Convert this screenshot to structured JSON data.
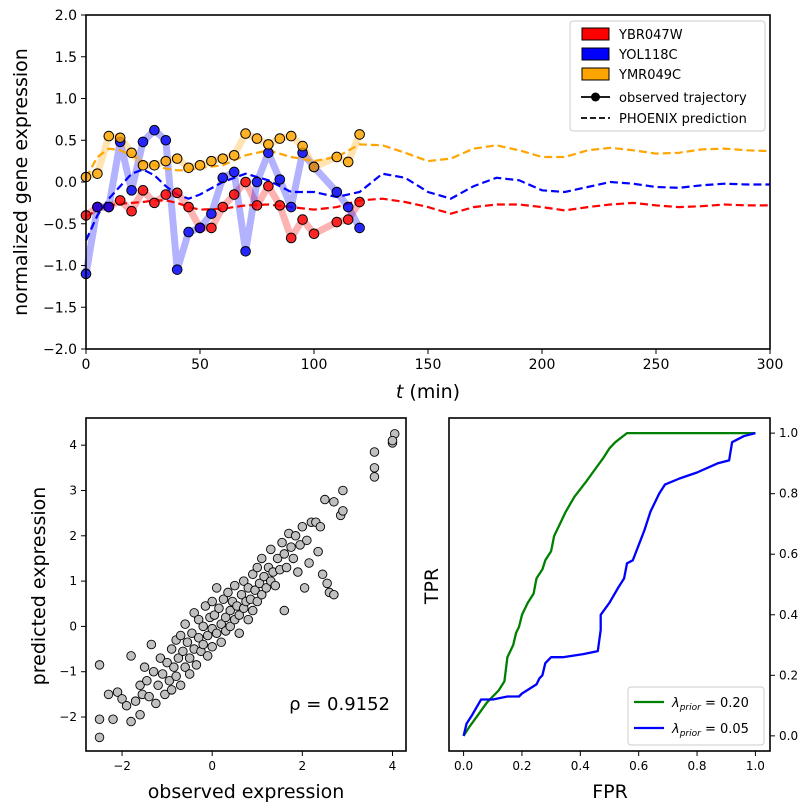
{
  "chart_data": [
    {
      "type": "line",
      "xlabel_italic": "t",
      "xlabel_unit": " (min)",
      "ylabel": "normalized gene expression",
      "xlim": [
        0,
        300
      ],
      "ylim": [
        -2.0,
        2.0
      ],
      "xticks": [
        0,
        50,
        100,
        150,
        200,
        250,
        300
      ],
      "yticks": [
        "2.0",
        "1.5",
        "1.0",
        "0.5",
        "0.0",
        "-0.5",
        "-1.0",
        "-1.5",
        "-2.0"
      ],
      "legend_position": "top-right",
      "legend": [
        {
          "label": "YBR047W",
          "kind": "patch",
          "color": "#ff0000"
        },
        {
          "label": "YOL118C",
          "kind": "patch",
          "color": "#0000ff"
        },
        {
          "label": "YMR049C",
          "kind": "patch",
          "color": "#ffa500"
        },
        {
          "label": "observed trajectory",
          "kind": "marker-line",
          "color": "#000000"
        },
        {
          "label": "PHOENIX prediction",
          "kind": "dashed-line",
          "color": "#000000"
        }
      ],
      "series": [
        {
          "name": "YBR047W",
          "color": "#ff0000",
          "observed_t": [
            0,
            5,
            10,
            15,
            20,
            25,
            30,
            35,
            40,
            45,
            50,
            55,
            60,
            65,
            70,
            75,
            80,
            85,
            90,
            95,
            100,
            110,
            115,
            120
          ],
          "observed": [
            -0.4,
            -0.3,
            -0.3,
            -0.22,
            -0.35,
            -0.1,
            -0.25,
            -0.15,
            -0.13,
            -0.3,
            -0.55,
            -0.55,
            -0.3,
            -0.15,
            0.0,
            -0.28,
            -0.05,
            -0.28,
            -0.67,
            -0.45,
            -0.62,
            -0.48,
            -0.45,
            -0.24
          ],
          "prediction_t": [
            0,
            5,
            10,
            15,
            20,
            25,
            30,
            35,
            40,
            45,
            50,
            60,
            70,
            80,
            90,
            100,
            110,
            120,
            130,
            140,
            150,
            160,
            170,
            180,
            190,
            200,
            210,
            220,
            230,
            240,
            250,
            260,
            270,
            280,
            290,
            300
          ],
          "prediction": [
            -0.42,
            -0.33,
            -0.28,
            -0.26,
            -0.25,
            -0.24,
            -0.22,
            -0.22,
            -0.25,
            -0.3,
            -0.33,
            -0.32,
            -0.28,
            -0.27,
            -0.3,
            -0.33,
            -0.3,
            -0.22,
            -0.2,
            -0.24,
            -0.3,
            -0.38,
            -0.3,
            -0.27,
            -0.27,
            -0.3,
            -0.34,
            -0.3,
            -0.27,
            -0.25,
            -0.28,
            -0.3,
            -0.29,
            -0.27,
            -0.28,
            -0.28
          ]
        },
        {
          "name": "YOL118C",
          "color": "#0000ff",
          "observed_t": [
            0,
            5,
            10,
            15,
            20,
            25,
            30,
            35,
            40,
            45,
            50,
            55,
            60,
            65,
            70,
            75,
            80,
            85,
            90,
            95,
            100,
            110,
            115,
            120
          ],
          "observed": [
            -1.1,
            -0.3,
            -0.3,
            0.48,
            -0.1,
            0.48,
            0.62,
            0.5,
            -1.05,
            -0.6,
            -0.55,
            -0.38,
            0.05,
            0.12,
            -0.83,
            0.0,
            0.35,
            0.03,
            -0.3,
            0.35,
            0.18,
            -0.12,
            -0.3,
            -0.55
          ],
          "prediction_t": [
            0,
            5,
            10,
            15,
            20,
            25,
            30,
            35,
            40,
            45,
            50,
            60,
            70,
            80,
            90,
            100,
            110,
            120,
            130,
            140,
            150,
            160,
            170,
            180,
            190,
            200,
            210,
            220,
            230,
            240,
            250,
            260,
            270,
            280,
            290,
            300
          ],
          "prediction": [
            -0.7,
            -0.4,
            -0.2,
            -0.05,
            0.1,
            0.15,
            0.08,
            -0.05,
            -0.15,
            -0.2,
            -0.15,
            0.0,
            0.1,
            0.02,
            -0.12,
            -0.12,
            -0.18,
            -0.12,
            0.1,
            0.05,
            -0.12,
            -0.2,
            -0.05,
            0.05,
            0.02,
            -0.1,
            -0.12,
            -0.06,
            0.0,
            -0.02,
            -0.06,
            -0.07,
            -0.04,
            -0.02,
            -0.03,
            -0.03
          ]
        },
        {
          "name": "YMR049C",
          "color": "#ffa500",
          "observed_t": [
            0,
            5,
            10,
            15,
            20,
            25,
            30,
            35,
            40,
            45,
            50,
            55,
            60,
            65,
            70,
            75,
            80,
            85,
            90,
            95,
            100,
            110,
            115,
            120
          ],
          "observed": [
            0.06,
            0.1,
            0.55,
            0.53,
            0.35,
            0.2,
            0.2,
            0.25,
            0.28,
            0.17,
            0.2,
            0.25,
            0.28,
            0.32,
            0.58,
            0.52,
            0.45,
            0.52,
            0.55,
            0.43,
            0.18,
            0.3,
            0.24,
            0.57
          ],
          "prediction_t": [
            0,
            5,
            10,
            15,
            20,
            25,
            30,
            35,
            40,
            45,
            50,
            60,
            70,
            80,
            90,
            100,
            110,
            120,
            130,
            140,
            150,
            160,
            170,
            180,
            190,
            200,
            210,
            220,
            230,
            240,
            250,
            260,
            270,
            280,
            290,
            300
          ],
          "prediction": [
            0.05,
            0.3,
            0.4,
            0.38,
            0.32,
            0.24,
            0.2,
            0.16,
            0.14,
            0.14,
            0.17,
            0.2,
            0.32,
            0.38,
            0.3,
            0.25,
            0.3,
            0.45,
            0.44,
            0.35,
            0.25,
            0.28,
            0.4,
            0.44,
            0.38,
            0.3,
            0.3,
            0.38,
            0.41,
            0.38,
            0.34,
            0.35,
            0.39,
            0.4,
            0.38,
            0.37
          ]
        }
      ]
    },
    {
      "type": "scatter",
      "xlabel": "observed expression",
      "ylabel": "predicted expression",
      "xlim": [
        -2.8,
        4.3
      ],
      "ylim": [
        -2.75,
        4.6
      ],
      "xticks": [
        -2,
        0,
        2,
        4
      ],
      "yticks": [
        -2,
        -1,
        0,
        1,
        2,
        3,
        4
      ],
      "annotation": "ρ = 0.9152",
      "point_color": "#c0c0c0",
      "points": [
        [
          -2.5,
          -2.45
        ],
        [
          -2.5,
          -2.05
        ],
        [
          -2.5,
          -0.85
        ],
        [
          -2.3,
          -1.5
        ],
        [
          -2.2,
          -2.05
        ],
        [
          -2.1,
          -1.45
        ],
        [
          -2.0,
          -1.6
        ],
        [
          -1.9,
          -1.75
        ],
        [
          -1.8,
          -2.1
        ],
        [
          -1.8,
          -0.65
        ],
        [
          -1.7,
          -1.65
        ],
        [
          -1.6,
          -1.3
        ],
        [
          -1.6,
          -1.95
        ],
        [
          -1.55,
          -1.5
        ],
        [
          -1.5,
          -0.9
        ],
        [
          -1.45,
          -1.2
        ],
        [
          -1.4,
          -1.55
        ],
        [
          -1.35,
          -0.4
        ],
        [
          -1.3,
          -1.0
        ],
        [
          -1.25,
          -1.7
        ],
        [
          -1.2,
          -1.3
        ],
        [
          -1.15,
          -0.7
        ],
        [
          -1.1,
          -1.05
        ],
        [
          -1.05,
          -1.5
        ],
        [
          -1.0,
          -0.8
        ],
        [
          -0.95,
          -1.2
        ],
        [
          -0.9,
          -0.5
        ],
        [
          -0.9,
          -1.4
        ],
        [
          -0.85,
          -0.9
        ],
        [
          -0.8,
          -0.3
        ],
        [
          -0.8,
          -1.1
        ],
        [
          -0.75,
          -0.7
        ],
        [
          -0.7,
          -1.3
        ],
        [
          -0.7,
          -0.2
        ],
        [
          -0.65,
          -0.55
        ],
        [
          -0.6,
          -0.9
        ],
        [
          -0.6,
          0.05
        ],
        [
          -0.55,
          -0.35
        ],
        [
          -0.5,
          -0.7
        ],
        [
          -0.5,
          -1.05
        ],
        [
          -0.45,
          -0.15
        ],
        [
          -0.4,
          -0.5
        ],
        [
          -0.4,
          0.3
        ],
        [
          -0.35,
          -0.85
        ],
        [
          -0.3,
          -0.25
        ],
        [
          -0.3,
          0.15
        ],
        [
          -0.25,
          -0.55
        ],
        [
          -0.2,
          0.0
        ],
        [
          -0.2,
          -0.4
        ],
        [
          -0.15,
          0.45
        ],
        [
          -0.1,
          -0.2
        ],
        [
          -0.1,
          -0.65
        ],
        [
          -0.05,
          0.2
        ],
        [
          0.0,
          -0.05
        ],
        [
          0.0,
          0.55
        ],
        [
          0.0,
          -0.45
        ],
        [
          0.05,
          0.25
        ],
        [
          0.1,
          -0.15
        ],
        [
          0.1,
          0.85
        ],
        [
          0.15,
          0.4
        ],
        [
          0.2,
          0.05
        ],
        [
          0.2,
          -0.35
        ],
        [
          0.25,
          0.6
        ],
        [
          0.3,
          0.2
        ],
        [
          0.3,
          -0.1
        ],
        [
          0.35,
          0.75
        ],
        [
          0.4,
          0.35
        ],
        [
          0.4,
          0.0
        ],
        [
          0.45,
          0.55
        ],
        [
          0.5,
          0.15
        ],
        [
          0.5,
          0.9
        ],
        [
          0.55,
          0.45
        ],
        [
          0.6,
          0.25
        ],
        [
          0.6,
          -0.15
        ],
        [
          0.65,
          0.7
        ],
        [
          0.7,
          0.4
        ],
        [
          0.7,
          1.0
        ],
        [
          0.75,
          0.55
        ],
        [
          0.8,
          0.15
        ],
        [
          0.8,
          0.85
        ],
        [
          0.85,
          0.6
        ],
        [
          0.9,
          1.15
        ],
        [
          0.9,
          0.35
        ],
        [
          0.95,
          0.8
        ],
        [
          1.0,
          0.55
        ],
        [
          1.0,
          1.3
        ],
        [
          1.05,
          0.95
        ],
        [
          1.1,
          0.7
        ],
        [
          1.1,
          1.5
        ],
        [
          1.15,
          1.1
        ],
        [
          1.2,
          0.85
        ],
        [
          1.25,
          1.3
        ],
        [
          1.3,
          1.0
        ],
        [
          1.3,
          1.7
        ],
        [
          1.35,
          1.2
        ],
        [
          1.4,
          0.9
        ],
        [
          1.45,
          1.5
        ],
        [
          1.5,
          1.25
        ],
        [
          1.55,
          1.85
        ],
        [
          1.6,
          1.6
        ],
        [
          1.6,
          0.35
        ],
        [
          1.65,
          1.3
        ],
        [
          1.7,
          2.05
        ],
        [
          1.75,
          1.75
        ],
        [
          1.8,
          1.5
        ],
        [
          1.85,
          2.0
        ],
        [
          1.9,
          1.2
        ],
        [
          1.95,
          1.8
        ],
        [
          2.0,
          2.2
        ],
        [
          2.05,
          0.85
        ],
        [
          2.1,
          1.9
        ],
        [
          2.15,
          1.4
        ],
        [
          2.2,
          2.3
        ],
        [
          2.3,
          2.3
        ],
        [
          2.35,
          1.65
        ],
        [
          2.4,
          2.2
        ],
        [
          2.45,
          1.15
        ],
        [
          2.5,
          2.8
        ],
        [
          2.55,
          0.95
        ],
        [
          2.6,
          0.75
        ],
        [
          2.7,
          0.7
        ],
        [
          2.7,
          2.75
        ],
        [
          2.85,
          2.45
        ],
        [
          2.9,
          2.55
        ],
        [
          2.9,
          3.0
        ],
        [
          3.6,
          3.3
        ],
        [
          3.6,
          3.5
        ],
        [
          3.6,
          3.85
        ],
        [
          4.0,
          4.05
        ],
        [
          4.05,
          4.25
        ],
        [
          4.0,
          4.1
        ]
      ]
    },
    {
      "type": "line",
      "xlabel": "FPR",
      "ylabel": "TPR",
      "xlim": [
        -0.05,
        1.05
      ],
      "ylim": [
        -0.05,
        1.05
      ],
      "xticks": [
        "0.0",
        "0.2",
        "0.4",
        "0.6",
        "0.8",
        "1.0"
      ],
      "yticks": [
        "0.0",
        "0.2",
        "0.4",
        "0.6",
        "0.8",
        "1.0"
      ],
      "legend_position": "lower-right",
      "series": [
        {
          "legend_base": "λ",
          "legend_sub": "prior",
          "legend_value": " = 0.20",
          "color": "#008000",
          "x": [
            0.0,
            0.02,
            0.05,
            0.08,
            0.12,
            0.14,
            0.15,
            0.17,
            0.18,
            0.19,
            0.2,
            0.22,
            0.24,
            0.25,
            0.27,
            0.28,
            0.3,
            0.31,
            0.33,
            0.35,
            0.38,
            0.42,
            0.45,
            0.48,
            0.5,
            0.52,
            0.56,
            0.7,
            0.85,
            1.0
          ],
          "y": [
            0.0,
            0.03,
            0.07,
            0.11,
            0.15,
            0.18,
            0.26,
            0.3,
            0.34,
            0.36,
            0.4,
            0.44,
            0.47,
            0.52,
            0.55,
            0.58,
            0.61,
            0.66,
            0.7,
            0.74,
            0.79,
            0.84,
            0.88,
            0.92,
            0.95,
            0.97,
            1.0,
            1.0,
            1.0,
            1.0
          ]
        },
        {
          "legend_base": "λ",
          "legend_sub": "prior",
          "legend_value": " = 0.05",
          "color": "#0000ff",
          "x": [
            0.0,
            0.01,
            0.03,
            0.06,
            0.1,
            0.15,
            0.19,
            0.2,
            0.25,
            0.26,
            0.27,
            0.28,
            0.3,
            0.34,
            0.41,
            0.46,
            0.47,
            0.47,
            0.5,
            0.53,
            0.55,
            0.56,
            0.58,
            0.6,
            0.62,
            0.64,
            0.67,
            0.69,
            0.74,
            0.8,
            0.87,
            0.91,
            0.92,
            0.96,
            1.0
          ],
          "y": [
            0.0,
            0.04,
            0.07,
            0.12,
            0.12,
            0.13,
            0.13,
            0.14,
            0.17,
            0.19,
            0.2,
            0.24,
            0.26,
            0.26,
            0.27,
            0.28,
            0.35,
            0.4,
            0.44,
            0.49,
            0.52,
            0.57,
            0.58,
            0.63,
            0.68,
            0.74,
            0.8,
            0.83,
            0.85,
            0.87,
            0.9,
            0.91,
            0.97,
            0.99,
            1.0
          ]
        }
      ]
    }
  ]
}
